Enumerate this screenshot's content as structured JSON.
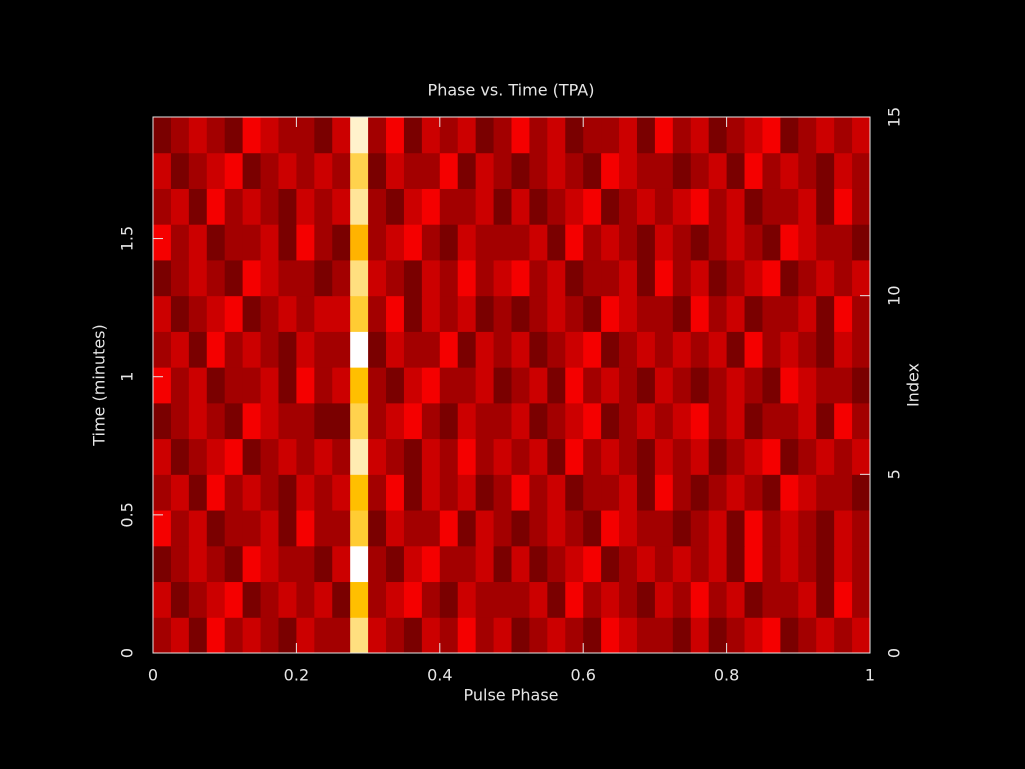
{
  "chart_data": {
    "type": "heatmap",
    "title": "Phase vs. Time (TPA)",
    "x_label": "Pulse Phase",
    "y_label": "Time (minutes)",
    "y2_label": "Index",
    "xlim": [
      0,
      1
    ],
    "xticks": [
      0,
      0.2,
      0.4,
      0.6,
      0.8,
      1
    ],
    "ylim": [
      0,
      1.94
    ],
    "yticks": [
      0,
      0.5,
      1,
      1.5
    ],
    "y2lim": [
      0,
      15
    ],
    "y2ticks": [
      0,
      5,
      10,
      15
    ],
    "colormap": "heat",
    "z": [
      [
        0.4,
        0.5,
        0.3,
        0.6,
        0.4,
        0.5,
        0.4,
        0.3,
        0.5,
        0.4,
        0.4,
        0.95,
        0.5,
        0.4,
        0.3,
        0.5,
        0.4,
        0.6,
        0.4,
        0.5,
        0.3,
        0.4,
        0.5,
        0.4,
        0.3,
        0.6,
        0.5,
        0.4,
        0.4,
        0.3,
        0.5,
        0.3,
        0.4,
        0.5,
        0.6,
        0.3,
        0.4,
        0.5,
        0.4,
        0.5
      ],
      [
        0.5,
        0.3,
        0.4,
        0.5,
        0.6,
        0.3,
        0.4,
        0.5,
        0.4,
        0.5,
        0.3,
        0.9,
        0.4,
        0.5,
        0.6,
        0.4,
        0.3,
        0.5,
        0.4,
        0.4,
        0.4,
        0.5,
        0.3,
        0.6,
        0.4,
        0.5,
        0.4,
        0.3,
        0.5,
        0.4,
        0.6,
        0.4,
        0.5,
        0.3,
        0.4,
        0.4,
        0.5,
        0.3,
        0.6,
        0.4
      ],
      [
        0.3,
        0.4,
        0.5,
        0.4,
        0.3,
        0.6,
        0.5,
        0.4,
        0.4,
        0.3,
        0.5,
        1.0,
        0.4,
        0.3,
        0.5,
        0.6,
        0.4,
        0.4,
        0.5,
        0.3,
        0.5,
        0.3,
        0.4,
        0.5,
        0.6,
        0.3,
        0.4,
        0.5,
        0.4,
        0.5,
        0.4,
        0.5,
        0.3,
        0.6,
        0.4,
        0.5,
        0.4,
        0.3,
        0.5,
        0.4
      ],
      [
        0.6,
        0.4,
        0.5,
        0.3,
        0.4,
        0.4,
        0.5,
        0.3,
        0.6,
        0.4,
        0.4,
        0.92,
        0.3,
        0.5,
        0.4,
        0.4,
        0.6,
        0.3,
        0.5,
        0.4,
        0.3,
        0.4,
        0.5,
        0.4,
        0.3,
        0.6,
        0.5,
        0.4,
        0.4,
        0.3,
        0.4,
        0.5,
        0.3,
        0.6,
        0.4,
        0.5,
        0.4,
        0.3,
        0.5,
        0.4
      ],
      [
        0.4,
        0.5,
        0.3,
        0.6,
        0.4,
        0.5,
        0.4,
        0.3,
        0.5,
        0.4,
        0.5,
        0.9,
        0.4,
        0.6,
        0.3,
        0.5,
        0.4,
        0.5,
        0.3,
        0.4,
        0.6,
        0.4,
        0.5,
        0.3,
        0.4,
        0.4,
        0.5,
        0.3,
        0.6,
        0.4,
        0.3,
        0.4,
        0.5,
        0.4,
        0.3,
        0.6,
        0.5,
        0.4,
        0.4,
        0.3
      ],
      [
        0.5,
        0.3,
        0.4,
        0.5,
        0.6,
        0.3,
        0.4,
        0.5,
        0.4,
        0.5,
        0.4,
        0.97,
        0.5,
        0.4,
        0.3,
        0.5,
        0.4,
        0.6,
        0.4,
        0.5,
        0.4,
        0.5,
        0.3,
        0.6,
        0.4,
        0.5,
        0.4,
        0.3,
        0.5,
        0.4,
        0.5,
        0.3,
        0.4,
        0.5,
        0.6,
        0.3,
        0.4,
        0.5,
        0.4,
        0.5
      ],
      [
        0.3,
        0.4,
        0.5,
        0.4,
        0.3,
        0.6,
        0.5,
        0.4,
        0.4,
        0.3,
        0.3,
        0.93,
        0.4,
        0.5,
        0.6,
        0.4,
        0.3,
        0.5,
        0.4,
        0.4,
        0.5,
        0.3,
        0.4,
        0.5,
        0.6,
        0.3,
        0.4,
        0.5,
        0.4,
        0.5,
        0.6,
        0.4,
        0.5,
        0.3,
        0.4,
        0.4,
        0.5,
        0.3,
        0.6,
        0.4
      ],
      [
        0.6,
        0.4,
        0.5,
        0.3,
        0.4,
        0.4,
        0.5,
        0.3,
        0.6,
        0.4,
        0.5,
        0.9,
        0.4,
        0.3,
        0.5,
        0.6,
        0.4,
        0.4,
        0.5,
        0.3,
        0.4,
        0.5,
        0.3,
        0.6,
        0.4,
        0.5,
        0.4,
        0.3,
        0.5,
        0.4,
        0.3,
        0.4,
        0.5,
        0.4,
        0.3,
        0.6,
        0.5,
        0.4,
        0.4,
        0.3
      ],
      [
        0.4,
        0.5,
        0.3,
        0.6,
        0.4,
        0.5,
        0.4,
        0.3,
        0.5,
        0.4,
        0.4,
        1.0,
        0.3,
        0.5,
        0.4,
        0.4,
        0.6,
        0.3,
        0.5,
        0.4,
        0.5,
        0.3,
        0.4,
        0.5,
        0.6,
        0.3,
        0.4,
        0.5,
        0.4,
        0.5,
        0.4,
        0.5,
        0.3,
        0.6,
        0.4,
        0.5,
        0.4,
        0.3,
        0.5,
        0.4
      ],
      [
        0.5,
        0.3,
        0.4,
        0.5,
        0.6,
        0.3,
        0.4,
        0.5,
        0.4,
        0.5,
        0.5,
        0.92,
        0.4,
        0.6,
        0.3,
        0.5,
        0.4,
        0.5,
        0.3,
        0.4,
        0.3,
        0.4,
        0.5,
        0.4,
        0.3,
        0.6,
        0.5,
        0.4,
        0.4,
        0.3,
        0.6,
        0.4,
        0.5,
        0.3,
        0.4,
        0.4,
        0.5,
        0.3,
        0.6,
        0.4
      ],
      [
        0.3,
        0.4,
        0.5,
        0.4,
        0.3,
        0.6,
        0.5,
        0.4,
        0.4,
        0.3,
        0.4,
        0.95,
        0.5,
        0.4,
        0.3,
        0.5,
        0.4,
        0.6,
        0.4,
        0.5,
        0.6,
        0.4,
        0.5,
        0.3,
        0.4,
        0.4,
        0.5,
        0.3,
        0.6,
        0.4,
        0.5,
        0.3,
        0.4,
        0.5,
        0.6,
        0.3,
        0.4,
        0.5,
        0.4,
        0.5
      ],
      [
        0.6,
        0.4,
        0.5,
        0.3,
        0.4,
        0.4,
        0.5,
        0.3,
        0.6,
        0.4,
        0.3,
        0.88,
        0.4,
        0.5,
        0.6,
        0.4,
        0.3,
        0.5,
        0.4,
        0.4,
        0.4,
        0.5,
        0.3,
        0.6,
        0.4,
        0.5,
        0.4,
        0.3,
        0.5,
        0.4,
        0.3,
        0.4,
        0.5,
        0.4,
        0.3,
        0.6,
        0.5,
        0.4,
        0.4,
        0.3
      ],
      [
        0.4,
        0.5,
        0.3,
        0.6,
        0.4,
        0.5,
        0.4,
        0.3,
        0.5,
        0.4,
        0.5,
        0.96,
        0.4,
        0.3,
        0.5,
        0.6,
        0.4,
        0.4,
        0.5,
        0.3,
        0.5,
        0.3,
        0.4,
        0.5,
        0.6,
        0.3,
        0.4,
        0.5,
        0.4,
        0.5,
        0.6,
        0.4,
        0.5,
        0.3,
        0.4,
        0.4,
        0.5,
        0.3,
        0.6,
        0.4
      ],
      [
        0.5,
        0.3,
        0.4,
        0.5,
        0.6,
        0.3,
        0.4,
        0.5,
        0.4,
        0.5,
        0.4,
        0.93,
        0.3,
        0.5,
        0.4,
        0.4,
        0.6,
        0.3,
        0.5,
        0.4,
        0.3,
        0.4,
        0.5,
        0.4,
        0.3,
        0.6,
        0.5,
        0.4,
        0.4,
        0.3,
        0.4,
        0.5,
        0.3,
        0.6,
        0.4,
        0.5,
        0.4,
        0.3,
        0.5,
        0.4
      ],
      [
        0.3,
        0.4,
        0.5,
        0.4,
        0.3,
        0.6,
        0.5,
        0.4,
        0.4,
        0.3,
        0.5,
        0.98,
        0.4,
        0.6,
        0.3,
        0.5,
        0.4,
        0.5,
        0.3,
        0.4,
        0.6,
        0.4,
        0.5,
        0.3,
        0.4,
        0.4,
        0.5,
        0.3,
        0.6,
        0.4,
        0.5,
        0.3,
        0.4,
        0.5,
        0.6,
        0.3,
        0.4,
        0.5,
        0.4,
        0.5
      ]
    ]
  }
}
